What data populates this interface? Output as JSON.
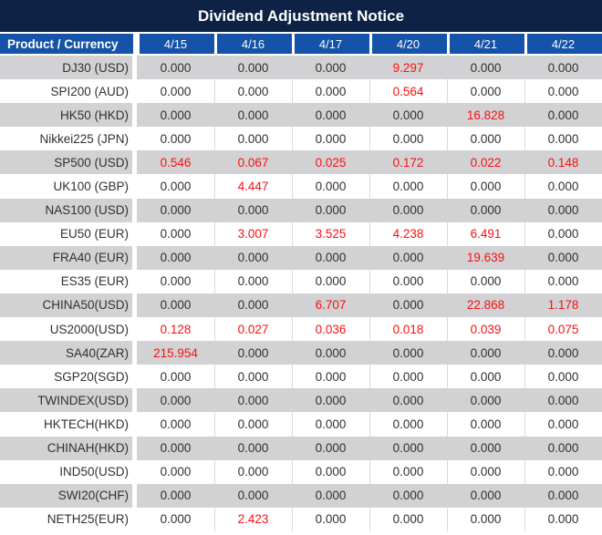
{
  "title": "Dividend Adjustment Notice",
  "colors": {
    "title_bg": "#0D2244",
    "header_bg": "#1453A7",
    "row_bg": "#FFFFFF",
    "row_alt_bg": "#D2D2D4",
    "grid_line": "#DBDBDB",
    "text_dark": "#303030",
    "text_red": "#FA0F0F",
    "text_white": "#FFFFFF"
  },
  "chart_data": {
    "type": "table",
    "title": "Dividend Adjustment Notice",
    "columns": [
      "Product / Currency",
      "4/15",
      "4/16",
      "4/17",
      "4/20",
      "4/21",
      "4/22"
    ],
    "rows": [
      {
        "product": "DJ30 (USD)",
        "values": [
          "0.000",
          "0.000",
          "0.000",
          "9.297",
          "0.000",
          "0.000"
        ],
        "red_flags": [
          0,
          0,
          0,
          1,
          0,
          0
        ]
      },
      {
        "product": "SPI200 (AUD)",
        "values": [
          "0.000",
          "0.000",
          "0.000",
          "0.564",
          "0.000",
          "0.000"
        ],
        "red_flags": [
          0,
          0,
          0,
          1,
          0,
          0
        ]
      },
      {
        "product": "HK50 (HKD)",
        "values": [
          "0.000",
          "0.000",
          "0.000",
          "0.000",
          "16.828",
          "0.000"
        ],
        "red_flags": [
          0,
          0,
          0,
          0,
          1,
          0
        ]
      },
      {
        "product": "Nikkei225 (JPN)",
        "values": [
          "0.000",
          "0.000",
          "0.000",
          "0.000",
          "0.000",
          "0.000"
        ],
        "red_flags": [
          0,
          0,
          0,
          0,
          0,
          0
        ]
      },
      {
        "product": "SP500 (USD)",
        "values": [
          "0.546",
          "0.067",
          "0.025",
          "0.172",
          "0.022",
          "0.148"
        ],
        "red_flags": [
          1,
          1,
          1,
          1,
          1,
          1
        ]
      },
      {
        "product": "UK100 (GBP)",
        "values": [
          "0.000",
          "4.447",
          "0.000",
          "0.000",
          "0.000",
          "0.000"
        ],
        "red_flags": [
          0,
          1,
          0,
          0,
          0,
          0
        ]
      },
      {
        "product": "NAS100 (USD)",
        "values": [
          "0.000",
          "0.000",
          "0.000",
          "0.000",
          "0.000",
          "0.000"
        ],
        "red_flags": [
          0,
          0,
          0,
          0,
          0,
          0
        ]
      },
      {
        "product": "EU50 (EUR)",
        "values": [
          "0.000",
          "3.007",
          "3.525",
          "4.238",
          "6.491",
          "0.000"
        ],
        "red_flags": [
          0,
          1,
          1,
          1,
          1,
          0
        ]
      },
      {
        "product": "FRA40 (EUR)",
        "values": [
          "0.000",
          "0.000",
          "0.000",
          "0.000",
          "19.639",
          "0.000"
        ],
        "red_flags": [
          0,
          0,
          0,
          0,
          1,
          0
        ]
      },
      {
        "product": "ES35 (EUR)",
        "values": [
          "0.000",
          "0.000",
          "0.000",
          "0.000",
          "0.000",
          "0.000"
        ],
        "red_flags": [
          0,
          0,
          0,
          0,
          0,
          0
        ]
      },
      {
        "product": "CHINA50(USD)",
        "values": [
          "0.000",
          "0.000",
          "6.707",
          "0.000",
          "22.868",
          "1.178"
        ],
        "red_flags": [
          0,
          0,
          1,
          0,
          1,
          1
        ]
      },
      {
        "product": "US2000(USD)",
        "values": [
          "0.128",
          "0.027",
          "0.036",
          "0.018",
          "0.039",
          "0.075"
        ],
        "red_flags": [
          1,
          1,
          1,
          1,
          1,
          1
        ]
      },
      {
        "product": "SA40(ZAR)",
        "values": [
          "215.954",
          "0.000",
          "0.000",
          "0.000",
          "0.000",
          "0.000"
        ],
        "red_flags": [
          1,
          0,
          0,
          0,
          0,
          0
        ]
      },
      {
        "product": "SGP20(SGD)",
        "values": [
          "0.000",
          "0.000",
          "0.000",
          "0.000",
          "0.000",
          "0.000"
        ],
        "red_flags": [
          0,
          0,
          0,
          0,
          0,
          0
        ]
      },
      {
        "product": "TWINDEX(USD)",
        "values": [
          "0.000",
          "0.000",
          "0.000",
          "0.000",
          "0.000",
          "0.000"
        ],
        "red_flags": [
          0,
          0,
          0,
          0,
          0,
          0
        ]
      },
      {
        "product": "HKTECH(HKD)",
        "values": [
          "0.000",
          "0.000",
          "0.000",
          "0.000",
          "0.000",
          "0.000"
        ],
        "red_flags": [
          0,
          0,
          0,
          0,
          0,
          0
        ]
      },
      {
        "product": "CHINAH(HKD)",
        "values": [
          "0.000",
          "0.000",
          "0.000",
          "0.000",
          "0.000",
          "0.000"
        ],
        "red_flags": [
          0,
          0,
          0,
          0,
          0,
          0
        ]
      },
      {
        "product": "IND50(USD)",
        "values": [
          "0.000",
          "0.000",
          "0.000",
          "0.000",
          "0.000",
          "0.000"
        ],
        "red_flags": [
          0,
          0,
          0,
          0,
          0,
          0
        ]
      },
      {
        "product": "SWI20(CHF)",
        "values": [
          "0.000",
          "0.000",
          "0.000",
          "0.000",
          "0.000",
          "0.000"
        ],
        "red_flags": [
          0,
          0,
          0,
          0,
          0,
          0
        ]
      },
      {
        "product": "NETH25(EUR)",
        "values": [
          "0.000",
          "2.423",
          "0.000",
          "0.000",
          "0.000",
          "0.000"
        ],
        "red_flags": [
          0,
          1,
          0,
          0,
          0,
          0
        ]
      }
    ]
  }
}
